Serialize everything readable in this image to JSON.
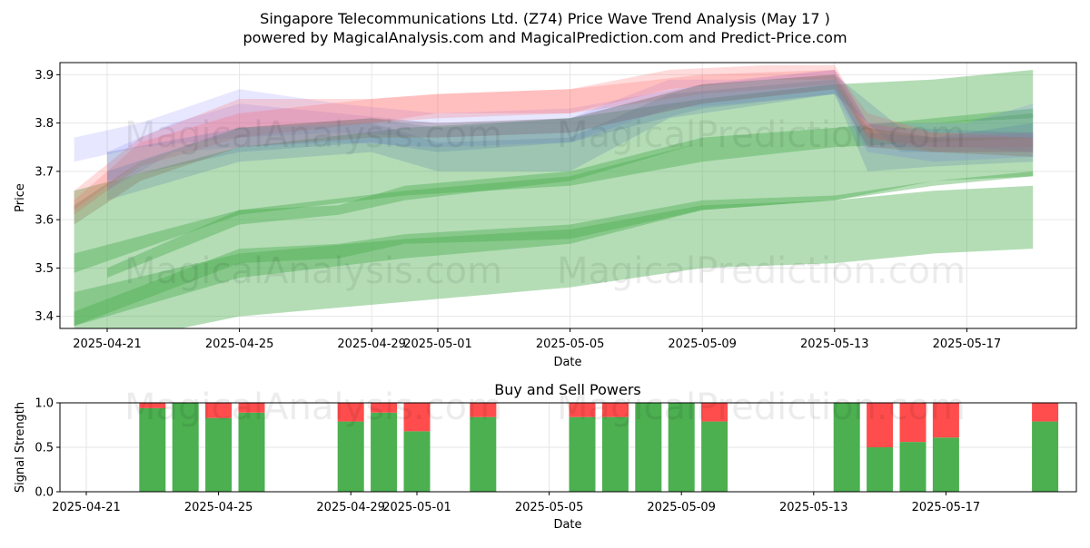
{
  "title_line1": "Singapore Telecommunications Ltd. (Z74) Price Wave Trend Analysis (May 17 )",
  "title_line2": "powered by MagicalAnalysis.com and MagicalPrediction.com and Predict-Price.com",
  "watermarks": [
    "MagicalAnalysis.com",
    "MagicalPrediction.com"
  ],
  "chart_data": [
    {
      "type": "area",
      "xlabel": "Date",
      "ylabel": "Price",
      "ylim": [
        3.375,
        3.925
      ],
      "grid": true,
      "x_ticks": [
        "2025-04-21",
        "2025-04-25",
        "2025-04-29",
        "2025-05-01",
        "2025-05-05",
        "2025-05-09",
        "2025-05-13",
        "2025-05-17"
      ],
      "y_ticks": [
        "3.4",
        "3.5",
        "3.6",
        "3.7",
        "3.8",
        "3.9"
      ],
      "colors": {
        "green": "#4caf50",
        "red": "#ff5a5a",
        "blue": "#6a6aff",
        "steel": "#5b7fa8",
        "brown": "#8a6a4a"
      },
      "series": [
        {
          "color": "green",
          "x": [
            "2025-04-20",
            "2025-04-25",
            "2025-04-30",
            "2025-05-05",
            "2025-05-09",
            "2025-05-13",
            "2025-05-16",
            "2025-05-19"
          ],
          "lower": [
            3.49,
            3.61,
            3.65,
            3.67,
            3.72,
            3.75,
            3.76,
            3.77
          ],
          "upper": [
            3.66,
            3.75,
            3.79,
            3.81,
            3.85,
            3.88,
            3.89,
            3.91
          ]
        },
        {
          "color": "green",
          "x": [
            "2025-04-20",
            "2025-04-25",
            "2025-04-30",
            "2025-05-05",
            "2025-05-09",
            "2025-05-13",
            "2025-05-16",
            "2025-05-19"
          ],
          "lower": [
            3.38,
            3.48,
            3.52,
            3.55,
            3.62,
            3.64,
            3.68,
            3.69
          ],
          "upper": [
            3.53,
            3.62,
            3.66,
            3.69,
            3.76,
            3.78,
            3.8,
            3.82
          ]
        },
        {
          "color": "green",
          "x": [
            "2025-04-20",
            "2025-04-25",
            "2025-04-30",
            "2025-05-05",
            "2025-05-09",
            "2025-05-13",
            "2025-05-16",
            "2025-05-19"
          ],
          "lower": [
            3.33,
            3.4,
            3.43,
            3.46,
            3.5,
            3.51,
            3.53,
            3.54
          ],
          "upper": [
            3.45,
            3.53,
            3.56,
            3.58,
            3.63,
            3.64,
            3.66,
            3.67
          ]
        },
        {
          "color": "green",
          "x": [
            "2025-04-21",
            "2025-04-25",
            "2025-04-28",
            "2025-04-30",
            "2025-05-05",
            "2025-05-09",
            "2025-05-13",
            "2025-05-16",
            "2025-05-19"
          ],
          "lower": [
            3.48,
            3.59,
            3.61,
            3.64,
            3.68,
            3.76,
            3.78,
            3.8,
            3.81
          ],
          "upper": [
            3.5,
            3.62,
            3.63,
            3.67,
            3.7,
            3.77,
            3.79,
            3.81,
            3.83
          ]
        },
        {
          "color": "green",
          "x": [
            "2025-04-20",
            "2025-04-25",
            "2025-04-28",
            "2025-04-30",
            "2025-05-05",
            "2025-05-09",
            "2025-05-13",
            "2025-05-16",
            "2025-05-19"
          ],
          "lower": [
            3.38,
            3.51,
            3.52,
            3.55,
            3.56,
            3.62,
            3.64,
            3.67,
            3.69
          ],
          "upper": [
            3.41,
            3.54,
            3.55,
            3.57,
            3.59,
            3.64,
            3.65,
            3.68,
            3.7
          ]
        },
        {
          "color": "blue",
          "x": [
            "2025-04-21",
            "2025-04-23",
            "2025-04-25",
            "2025-04-28",
            "2025-05-01",
            "2025-05-05",
            "2025-05-08",
            "2025-05-10",
            "2025-05-13",
            "2025-05-14",
            "2025-05-16",
            "2025-05-19"
          ],
          "lower": [
            3.66,
            3.74,
            3.75,
            3.76,
            3.75,
            3.76,
            3.83,
            3.84,
            3.86,
            3.74,
            3.72,
            3.73
          ],
          "upper": [
            3.74,
            3.8,
            3.84,
            3.82,
            3.8,
            3.81,
            3.89,
            3.89,
            3.91,
            3.8,
            3.77,
            3.78
          ]
        },
        {
          "color": "blue",
          "x": [
            "2025-04-20",
            "2025-04-22",
            "2025-04-25",
            "2025-04-28",
            "2025-05-01",
            "2025-05-05",
            "2025-05-09",
            "2025-05-13",
            "2025-05-14",
            "2025-05-17",
            "2025-05-19"
          ],
          "lower": [
            3.72,
            3.75,
            3.77,
            3.78,
            3.77,
            3.78,
            3.84,
            3.87,
            3.75,
            3.75,
            3.74
          ],
          "upper": [
            3.77,
            3.8,
            3.87,
            3.84,
            3.82,
            3.83,
            3.88,
            3.91,
            3.8,
            3.8,
            3.84
          ]
        },
        {
          "color": "red",
          "x": [
            "2025-04-20",
            "2025-04-22",
            "2025-04-25",
            "2025-04-29",
            "2025-05-01",
            "2025-05-05",
            "2025-05-08",
            "2025-05-11",
            "2025-05-13",
            "2025-05-14",
            "2025-05-16",
            "2025-05-19"
          ],
          "lower": [
            3.61,
            3.71,
            3.77,
            3.8,
            3.81,
            3.82,
            3.87,
            3.89,
            3.89,
            3.77,
            3.75,
            3.75
          ],
          "upper": [
            3.64,
            3.76,
            3.82,
            3.85,
            3.86,
            3.87,
            3.91,
            3.92,
            3.92,
            3.8,
            3.78,
            3.77
          ]
        },
        {
          "color": "red",
          "x": [
            "2025-04-20",
            "2025-04-22",
            "2025-04-25",
            "2025-04-29",
            "2025-05-01",
            "2025-05-05",
            "2025-05-09",
            "2025-05-13",
            "2025-05-14",
            "2025-05-16",
            "2025-05-19"
          ],
          "lower": [
            3.62,
            3.72,
            3.79,
            3.8,
            3.82,
            3.82,
            3.86,
            3.88,
            3.77,
            3.74,
            3.74
          ],
          "upper": [
            3.66,
            3.77,
            3.85,
            3.85,
            3.86,
            3.87,
            3.9,
            3.91,
            3.82,
            3.78,
            3.78
          ]
        },
        {
          "color": "steel",
          "x": [
            "2025-04-21",
            "2025-04-25",
            "2025-04-29",
            "2025-05-01",
            "2025-05-05",
            "2025-05-08",
            "2025-05-13",
            "2025-05-14",
            "2025-05-16",
            "2025-05-19"
          ],
          "lower": [
            3.64,
            3.72,
            3.74,
            3.7,
            3.7,
            3.81,
            3.86,
            3.7,
            3.71,
            3.72
          ],
          "upper": [
            3.7,
            3.79,
            3.8,
            3.76,
            3.77,
            3.86,
            3.89,
            3.78,
            3.77,
            3.8
          ]
        },
        {
          "color": "steel",
          "x": [
            "2025-04-21",
            "2025-04-25",
            "2025-04-29",
            "2025-05-01",
            "2025-05-05",
            "2025-05-09",
            "2025-05-13",
            "2025-05-15",
            "2025-05-19"
          ],
          "lower": [
            3.68,
            3.74,
            3.76,
            3.74,
            3.76,
            3.83,
            3.86,
            3.74,
            3.74
          ],
          "upper": [
            3.74,
            3.79,
            3.81,
            3.79,
            3.81,
            3.88,
            3.9,
            3.79,
            3.78
          ]
        },
        {
          "color": "brown",
          "x": [
            "2025-04-20",
            "2025-04-22",
            "2025-04-25",
            "2025-04-29",
            "2025-05-01",
            "2025-05-05",
            "2025-05-09",
            "2025-05-13",
            "2025-05-14",
            "2025-05-16",
            "2025-05-19"
          ],
          "lower": [
            3.59,
            3.68,
            3.75,
            3.77,
            3.77,
            3.78,
            3.84,
            3.87,
            3.75,
            3.74,
            3.73
          ],
          "upper": [
            3.63,
            3.72,
            3.79,
            3.81,
            3.8,
            3.81,
            3.88,
            3.9,
            3.79,
            3.77,
            3.77
          ]
        }
      ]
    },
    {
      "type": "bar",
      "title": "Buy and Sell Powers",
      "xlabel": "Date",
      "ylabel": "Signal Strength",
      "ylim": [
        0,
        1.0
      ],
      "grid": true,
      "x_ticks": [
        "2025-04-21",
        "2025-04-25",
        "2025-04-29",
        "2025-05-01",
        "2025-05-05",
        "2025-05-09",
        "2025-05-13",
        "2025-05-17"
      ],
      "y_ticks": [
        "0.0",
        "0.5",
        "1.0"
      ],
      "colors": {
        "buy": "#4caf50",
        "sell": "#ff4d4d"
      },
      "categories": [
        "2025-04-22",
        "2025-04-23",
        "2025-04-24",
        "2025-04-25",
        "2025-04-28",
        "2025-04-29",
        "2025-04-30",
        "2025-05-02",
        "2025-05-05",
        "2025-05-06",
        "2025-05-07",
        "2025-05-08",
        "2025-05-09",
        "2025-05-13",
        "2025-05-14",
        "2025-05-15",
        "2025-05-16",
        "2025-05-19"
      ],
      "series": [
        {
          "name": "buy",
          "values": [
            0.94,
            1.0,
            0.83,
            0.89,
            0.79,
            0.89,
            0.68,
            0.84,
            0.84,
            0.84,
            1.0,
            1.0,
            0.79,
            1.0,
            0.5,
            0.56,
            0.61,
            0.79
          ]
        },
        {
          "name": "sell",
          "values": [
            0.06,
            0.0,
            0.17,
            0.11,
            0.21,
            0.11,
            0.32,
            0.16,
            0.16,
            0.16,
            0.0,
            0.0,
            0.21,
            0.0,
            0.5,
            0.44,
            0.39,
            0.21
          ]
        }
      ]
    }
  ]
}
